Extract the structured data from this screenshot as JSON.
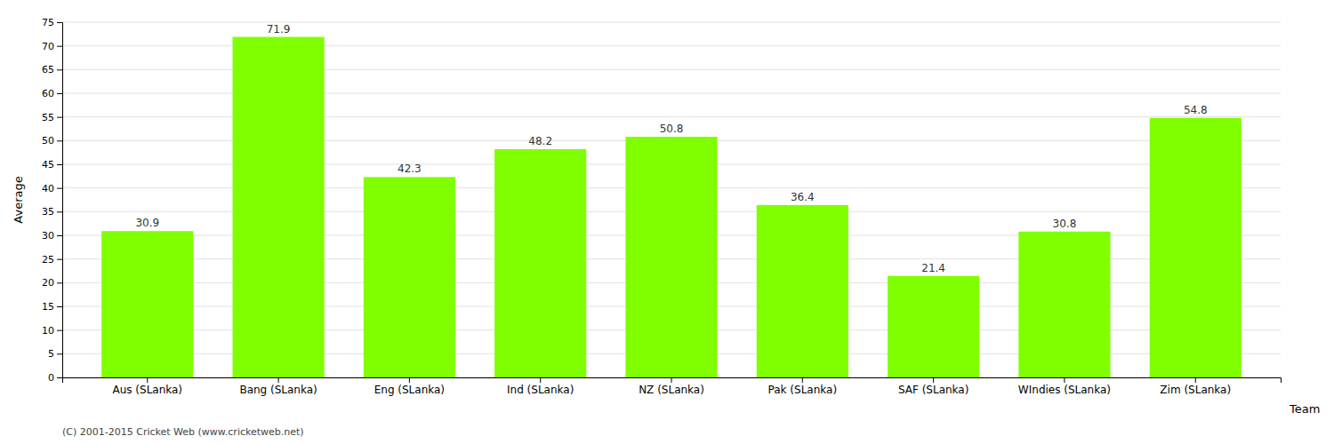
{
  "chart_data": {
    "type": "bar",
    "categories": [
      "Aus (SLanka)",
      "Bang (SLanka)",
      "Eng (SLanka)",
      "Ind (SLanka)",
      "NZ (SLanka)",
      "Pak (SLanka)",
      "SAF (SLanka)",
      "WIndies (SLanka)",
      "Zim (SLanka)"
    ],
    "values": [
      30.9,
      71.9,
      42.3,
      48.2,
      50.8,
      36.4,
      21.4,
      30.8,
      54.8
    ],
    "color": "#7fff00",
    "xlabel": "Team",
    "ylabel": "Average",
    "ylim": [
      0,
      75
    ],
    "yticks": [
      0,
      5,
      10,
      15,
      20,
      25,
      30,
      35,
      40,
      45,
      50,
      55,
      60,
      65,
      70,
      75
    ],
    "grid": true,
    "data_labels": true,
    "annotations": [
      "(C) 2001-2015 Cricket Web (www.cricketweb.net)"
    ]
  }
}
